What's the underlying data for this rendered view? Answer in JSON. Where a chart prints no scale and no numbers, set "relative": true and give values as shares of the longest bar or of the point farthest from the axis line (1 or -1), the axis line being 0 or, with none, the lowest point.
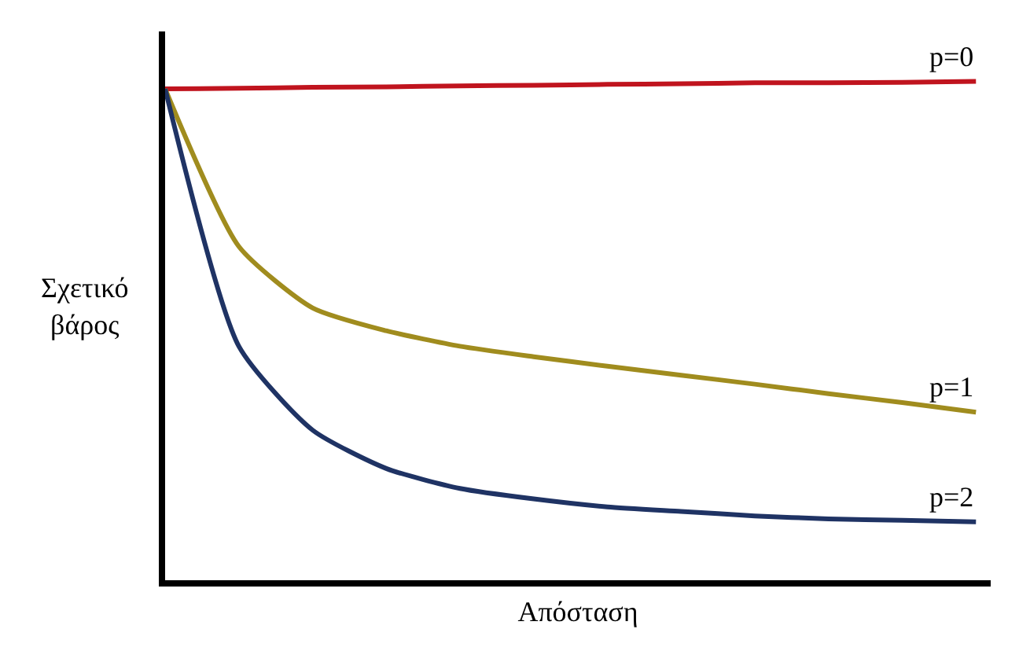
{
  "chart_data": {
    "type": "line",
    "relative": true,
    "xlabel": "Απόσταση",
    "ylabel": "Σχετικό\nβάρος",
    "categories": [
      null,
      null,
      null,
      null,
      null,
      null,
      null,
      null,
      null,
      null,
      null,
      null
    ],
    "marker": "none",
    "line_style": "solid",
    "legend": false,
    "series": [
      {
        "name": "p=0",
        "color": "#c0141e",
        "values": [
          0.985,
          0.986,
          0.988,
          0.989,
          0.991,
          0.992,
          0.994,
          0.995,
          0.997,
          0.997,
          0.998,
          1
        ]
      },
      {
        "name": "p=1",
        "color": "#a08c1e",
        "values": [
          0.985,
          0.669,
          0.546,
          0.5,
          0.469,
          0.448,
          0.429,
          0.411,
          0.393,
          0.374,
          0.356,
          0.337
        ]
      },
      {
        "name": "p=2",
        "color": "#1f3364",
        "values": [
          0.985,
          0.469,
          0.301,
          0.224,
          0.184,
          0.163,
          0.147,
          0.138,
          0.129,
          0.123,
          0.12,
          0.117
        ]
      }
    ]
  }
}
